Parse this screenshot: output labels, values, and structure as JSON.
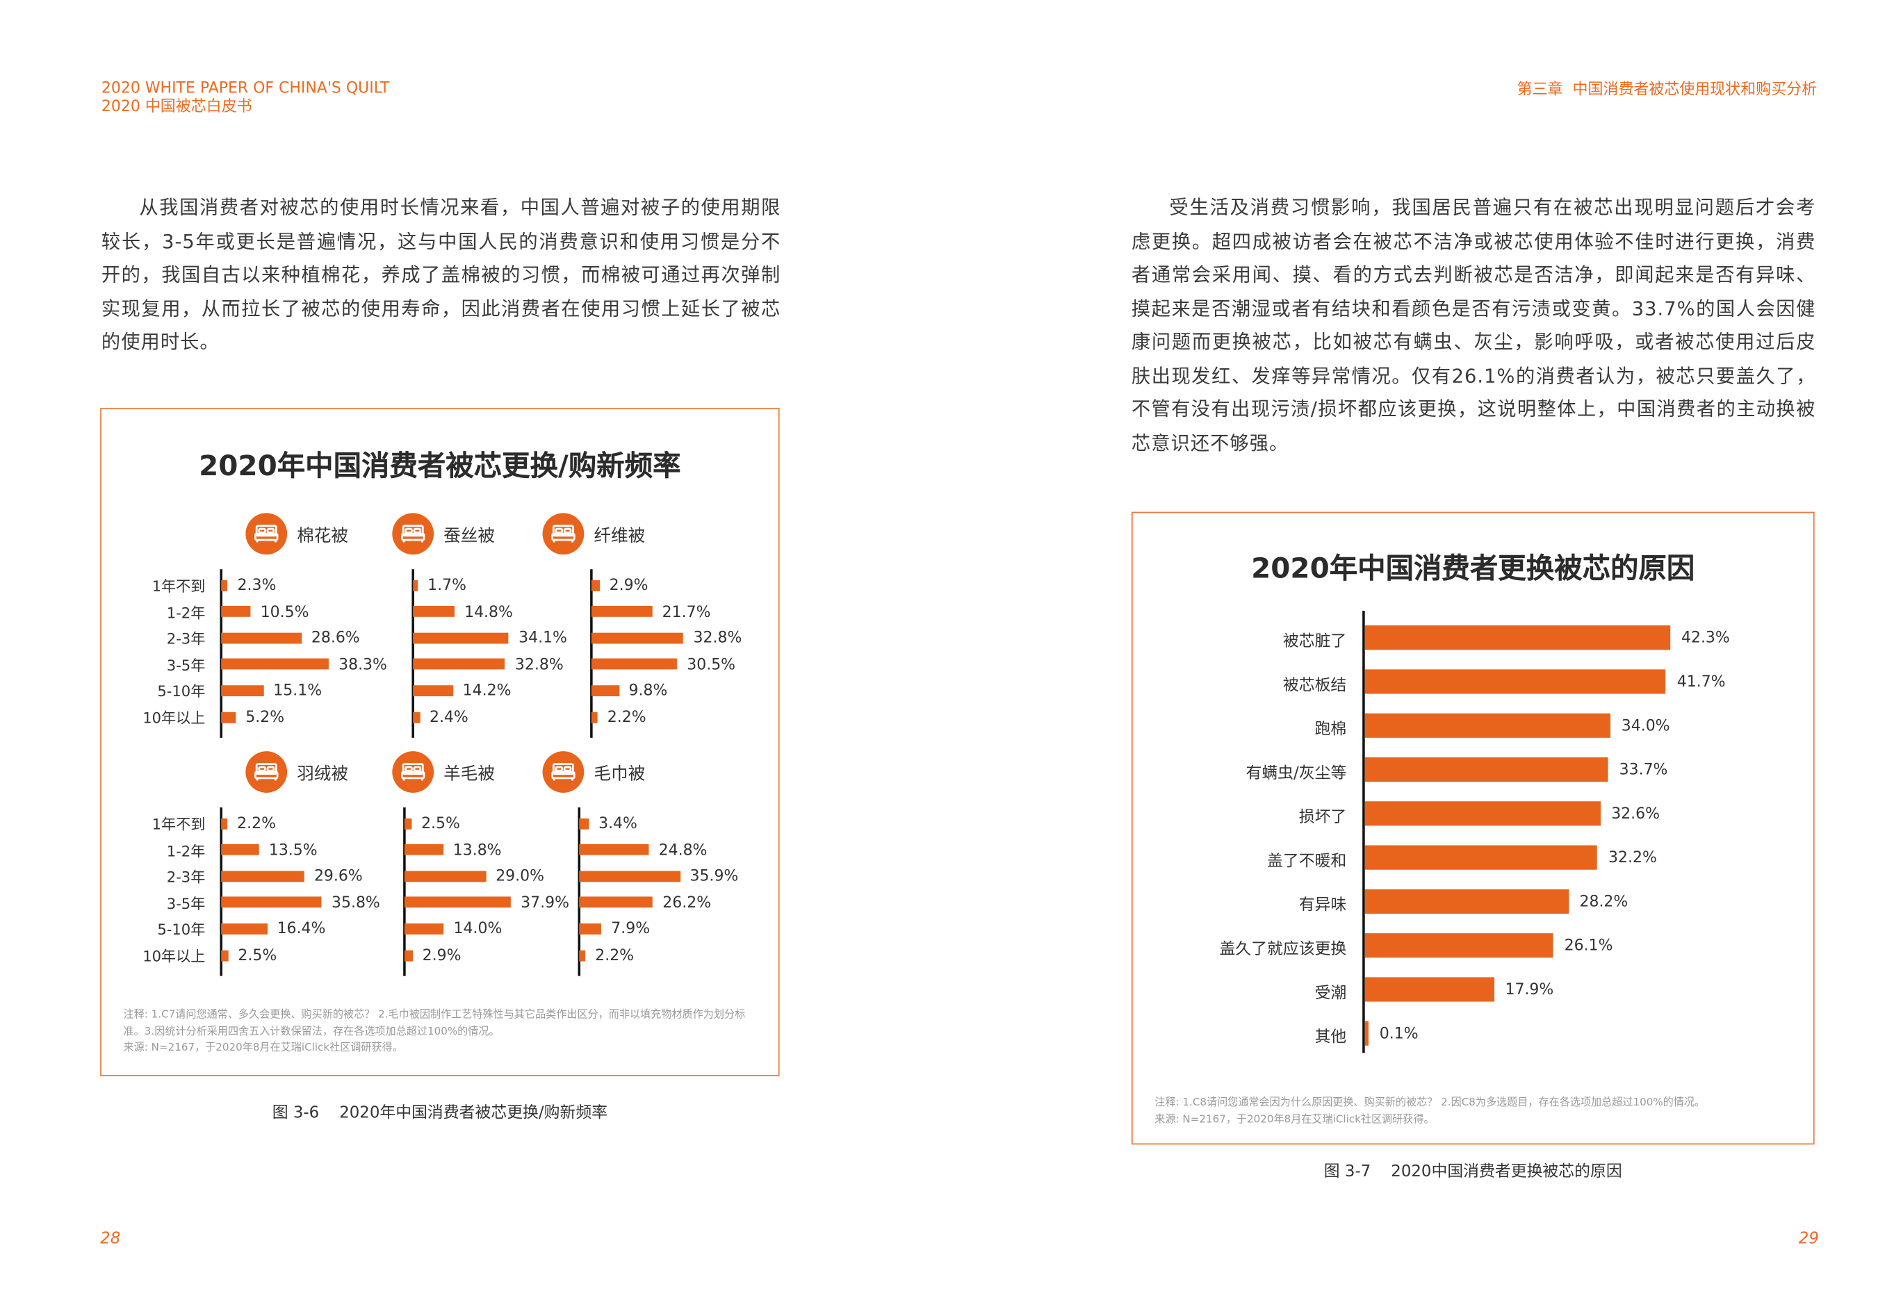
{
  "header": {
    "left_en": "2020 WHITE PAPER OF CHINA'S QUILT",
    "left_cn": "2020 中国被芯白皮书",
    "right": "第三章  中国消费者被芯使用现状和购买分析"
  },
  "left_paragraph": "从我国消费者对被芯的使用时长情况来看，中国人普遍对被子的使用期限较长，3-5年或更长是普遍情况，这与中国人民的消费意识和使用习惯是分不开的，我国自古以来种植棉花，养成了盖棉被的习惯，而棉被可通过再次弹制实现复用，从而拉长了被芯的使用寿命，因此消费者在使用习惯上延长了被芯的使用时长。",
  "right_paragraph": "受生活及消费习惯影响，我国居民普遍只有在被芯出现明显问题后才会考虑更换。超四成被访者会在被芯不洁净或被芯使用体验不佳时进行更换，消费者通常会采用闻、摸、看的方式去判断被芯是否洁净，即闻起来是否有异味、摸起来是否潮湿或者有结块和看颜色是否有污渍或变黄。33.7%的国人会因健康问题而更换被芯，比如被芯有螨虫、灰尘，影响呼吸，或者被芯使用过后皮肤出现发红、发痒等异常情况。仅有26.1%的消费者认为，被芯只要盖久了，不管有没有出现污渍/损坏都应该更换，这说明整体上，中国消费者的主动换被芯意识还不够强。",
  "colors": {
    "accent": "#e8641c",
    "header": "#ee6a1e"
  },
  "chart_data": [
    {
      "type": "bar",
      "title": "2020年中国消费者被芯更换/购新频率",
      "categories": [
        "1年不到",
        "1-2年",
        "2-3年",
        "3-5年",
        "5-10年",
        "10年以上"
      ],
      "unit": "%",
      "series": [
        {
          "name": "棉花被",
          "values": [
            2.3,
            10.5,
            28.6,
            38.3,
            15.1,
            5.2
          ],
          "labels": [
            "2.3%",
            "10.5%",
            "28.6%",
            "38.3%",
            "15.1%",
            "5.2%"
          ]
        },
        {
          "name": "蚕丝被",
          "values": [
            1.7,
            14.8,
            34.1,
            32.8,
            14.2,
            2.4
          ],
          "labels": [
            "1.7%",
            "14.8%",
            "34.1%",
            "32.8%",
            "14.2%",
            "2.4%"
          ]
        },
        {
          "name": "纤维被",
          "values": [
            2.9,
            21.7,
            32.8,
            30.5,
            9.8,
            2.2
          ],
          "labels": [
            "2.9%",
            "21.7%",
            "32.8%",
            "30.5%",
            "9.8%",
            "2.2%"
          ]
        },
        {
          "name": "羽绒被",
          "values": [
            2.2,
            13.5,
            29.6,
            35.8,
            16.4,
            2.5
          ],
          "labels": [
            "2.2%",
            "13.5%",
            "29.6%",
            "35.8%",
            "16.4%",
            "2.5%"
          ]
        },
        {
          "name": "羊毛被",
          "values": [
            2.5,
            13.8,
            29.0,
            37.9,
            14.0,
            2.9
          ],
          "labels": [
            "2.5%",
            "13.8%",
            "29.0%",
            "37.9%",
            "14.0%",
            "2.9%"
          ]
        },
        {
          "name": "毛巾被",
          "values": [
            3.4,
            24.8,
            35.9,
            26.2,
            7.9,
            2.2
          ],
          "labels": [
            "3.4%",
            "24.8%",
            "35.9%",
            "26.2%",
            "7.9%",
            "2.2%"
          ]
        }
      ],
      "icon": "bed-icon",
      "notes": [
        "注释: 1.C7请问您通常、多久会更换、购买新的被芯？ 2.毛巾被因制作工艺特殊性与其它品类作出区分，而非以填充物材质作为划分标准。3.因统计分析采用四舍五入计数保留法，存在各选项加总超过100%的情况。",
        "来源: N=2167，于2020年8月在艾瑞iClick社区调研获得。"
      ],
      "caption": "图 3-6    2020年中国消费者被芯更换/购新频率"
    },
    {
      "type": "bar",
      "title": "2020年中国消费者更换被芯的原因",
      "categories": [
        "被芯脏了",
        "被芯板结",
        "跑棉",
        "有螨虫/灰尘等",
        "损坏了",
        "盖了不暖和",
        "有异味",
        "盖久了就应该更换",
        "受潮",
        "其他"
      ],
      "values": [
        42.3,
        41.7,
        34.0,
        33.7,
        32.6,
        32.2,
        28.2,
        26.1,
        17.9,
        0.1
      ],
      "labels": [
        "42.3%",
        "41.7%",
        "34.0%",
        "33.7%",
        "32.6%",
        "32.2%",
        "28.2%",
        "26.1%",
        "17.9%",
        "0.1%"
      ],
      "unit": "%",
      "notes": [
        "注释: 1.C8请问您通常会因为什么原因更换、购买新的被芯？ 2.因C8为多选题目，存在各选项加总超过100%的情况。",
        "来源: N=2167，于2020年8月在艾瑞iClick社区调研获得。"
      ],
      "caption": "图 3-7    2020中国消费者更换被芯的原因"
    }
  ],
  "page_numbers": {
    "left": "28",
    "right": "29"
  }
}
